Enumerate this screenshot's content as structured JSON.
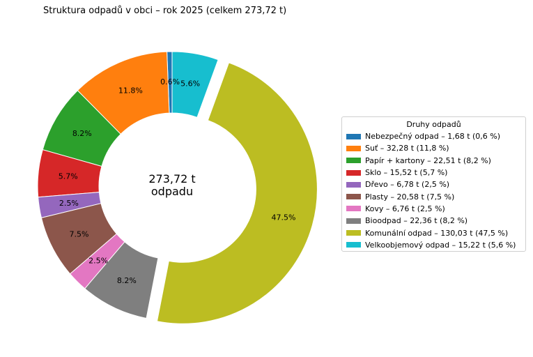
{
  "chart_data": {
    "type": "pie",
    "title": "Struktura odpadů v obci – rok 2025 (celkem 273,72 t)",
    "center_label_line1": "273,72 t",
    "center_label_line2": "odpadu",
    "legend_title": "Druhy odpadů",
    "legend_position": "right",
    "slices": [
      {
        "label": "Nebezpečný odpad",
        "value": 1.68,
        "percent_label": "0.6%",
        "legend": "Nebezpečný odpad – 1,68 t (0,6 %)",
        "color": "#1f77b4",
        "exploded": false
      },
      {
        "label": "Suť",
        "value": 32.28,
        "percent_label": "11.8%",
        "legend": "Suť – 32,28 t (11,8 %)",
        "color": "#ff7f0e",
        "exploded": false
      },
      {
        "label": "Papír + kartony",
        "value": 22.51,
        "percent_label": "8.2%",
        "legend": "Papír + kartony – 22,51 t (8,2 %)",
        "color": "#2ca02c",
        "exploded": false
      },
      {
        "label": "Sklo",
        "value": 15.52,
        "percent_label": "5.7%",
        "legend": "Sklo – 15,52 t (5,7 %)",
        "color": "#d62728",
        "exploded": false
      },
      {
        "label": "Dřevo",
        "value": 6.78,
        "percent_label": "2.5%",
        "legend": "Dřevo – 6,78 t (2,5 %)",
        "color": "#9467bd",
        "exploded": false
      },
      {
        "label": "Plasty",
        "value": 20.58,
        "percent_label": "7.5%",
        "legend": "Plasty – 20,58 t (7,5 %)",
        "color": "#8c564b",
        "exploded": false
      },
      {
        "label": "Kovy",
        "value": 6.76,
        "percent_label": "2.5%",
        "legend": "Kovy – 6,76 t (2,5 %)",
        "color": "#e377c2",
        "exploded": false
      },
      {
        "label": "Bioodpad",
        "value": 22.36,
        "percent_label": "8.2%",
        "legend": "Bioodpad – 22,36 t (8,2 %)",
        "color": "#7f7f7f",
        "exploded": false
      },
      {
        "label": "Komunální odpad",
        "value": 130.03,
        "percent_label": "47.5%",
        "legend": "Komunální odpad – 130,03 t (47,5 %)",
        "color": "#bcbd22",
        "exploded": true
      },
      {
        "label": "Velkoobjemový odpad",
        "value": 15.22,
        "percent_label": "5.6%",
        "legend": "Velkoobjemový odpad – 15,22 t (5,6 %)",
        "color": "#17becf",
        "exploded": false
      }
    ]
  }
}
